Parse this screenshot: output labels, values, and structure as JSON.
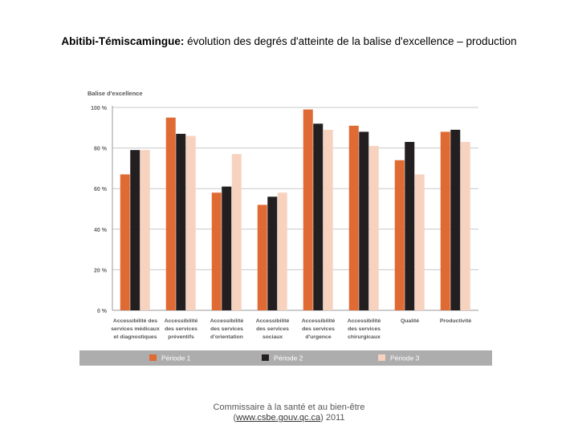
{
  "slide": {
    "title_bold": "Abitibi-Témiscamingue:",
    "title_rest": " évolution des degrés d'atteinte de la balise d'excellence – production",
    "footer_line1": "Commissaire à la santé et au bien-être",
    "footer_paren_open": "(",
    "footer_link": "www.csbe.gouv.qc.ca",
    "footer_tail": ") 2011"
  },
  "chart_data": {
    "type": "bar",
    "title": "",
    "ylabel": "Balise d'excellence",
    "xlabel": "",
    "ylim": [
      0,
      100
    ],
    "yticks": [
      0,
      20,
      40,
      60,
      80,
      100
    ],
    "ytick_labels": [
      "0 %",
      "20 %",
      "40 %",
      "60 %",
      "80 %",
      "100 %"
    ],
    "grid": true,
    "legend_position": "bottom",
    "categories": [
      [
        "Accessibilité des",
        "services médicaux",
        "et diagnostiques"
      ],
      [
        "Accessibilité",
        "des services",
        "préventifs"
      ],
      [
        "Accessibilité",
        "des services",
        "d'orientation"
      ],
      [
        "Accessibilité",
        "des services",
        "sociaux"
      ],
      [
        "Accessibilité",
        "des services",
        "d'urgence"
      ],
      [
        "Accessibilité",
        "des services",
        "chirurgicaux"
      ],
      [
        "Qualité"
      ],
      [
        "Productivité"
      ]
    ],
    "series": [
      {
        "name": "Période 1",
        "color": "#e06a33",
        "values": [
          67,
          95,
          58,
          52,
          99,
          91,
          74,
          88
        ]
      },
      {
        "name": "Période 2",
        "color": "#231f20",
        "values": [
          79,
          87,
          61,
          56,
          92,
          88,
          83,
          89
        ]
      },
      {
        "name": "Période 3",
        "color": "#f7d3bf",
        "values": [
          79,
          86,
          77,
          58,
          89,
          81,
          67,
          83
        ]
      }
    ]
  }
}
